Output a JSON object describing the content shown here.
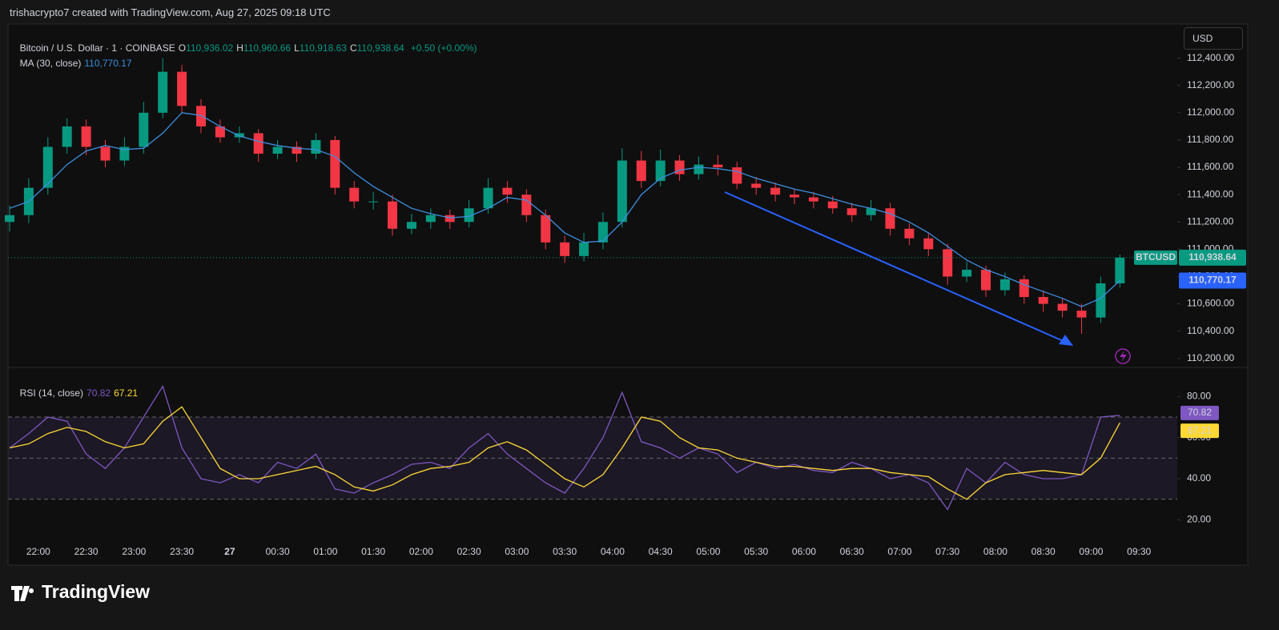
{
  "header": {
    "caption": "trishacrypto7 created with TradingView.com, Aug 27, 2025 09:18 UTC"
  },
  "toolbar": {
    "currency": "USD"
  },
  "footer": {
    "brand": "TradingView"
  },
  "chart_data": [
    {
      "type": "candlestick",
      "title": "Bitcoin / U.S. Dollar · 1 · COINBASE",
      "legend_ohlc": [
        {
          "key": "O",
          "value": "110,936.02"
        },
        {
          "key": "H",
          "value": "110,960.66"
        },
        {
          "key": "L",
          "value": "110,918.63"
        },
        {
          "key": "C",
          "value": "110,938.64"
        }
      ],
      "change": "+0.50 (+0.00%)",
      "up_color": "#089981",
      "down_color": "#f23645",
      "x": [
        "21:42",
        "21:54",
        "22:06",
        "22:18",
        "22:30",
        "22:42",
        "22:54",
        "23:06",
        "23:18",
        "23:30",
        "23:42",
        "23:54",
        "00:06",
        "00:18",
        "00:30",
        "00:42",
        "00:54",
        "01:06",
        "01:18",
        "01:30",
        "01:42",
        "01:54",
        "02:06",
        "02:18",
        "02:30",
        "02:42",
        "02:54",
        "03:06",
        "03:18",
        "03:30",
        "03:42",
        "03:54",
        "04:06",
        "04:18",
        "04:30",
        "04:42",
        "04:54",
        "05:06",
        "05:18",
        "05:30",
        "05:42",
        "05:54",
        "06:06",
        "06:18",
        "06:30",
        "06:42",
        "06:54",
        "07:06",
        "07:18",
        "07:30",
        "07:42",
        "07:54",
        "08:06",
        "08:18",
        "08:30",
        "08:42",
        "08:54",
        "09:06",
        "09:18"
      ],
      "open": [
        111200,
        111250,
        111450,
        111750,
        111900,
        111750,
        111650,
        111750,
        112000,
        112300,
        112050,
        111900,
        111820,
        111850,
        111700,
        111750,
        111700,
        111800,
        111450,
        111350,
        111350,
        111150,
        111200,
        111250,
        111200,
        111300,
        111450,
        111400,
        111250,
        111050,
        110950,
        111050,
        111200,
        111650,
        111500,
        111650,
        111550,
        111620,
        111600,
        111480,
        111450,
        111400,
        111380,
        111350,
        111300,
        111250,
        111300,
        111150,
        111080,
        111000,
        110800,
        110850,
        110700,
        110780,
        110650,
        110600,
        110550,
        110500,
        110750
      ],
      "high": [
        111320,
        111520,
        111820,
        111960,
        111950,
        111800,
        111820,
        112080,
        112400,
        112350,
        112100,
        111950,
        111900,
        111880,
        111800,
        111790,
        111850,
        111830,
        111500,
        111420,
        111400,
        111260,
        111300,
        111290,
        111360,
        111520,
        111500,
        111440,
        111290,
        111100,
        111120,
        111270,
        111740,
        111720,
        111730,
        111690,
        111680,
        111690,
        111640,
        111530,
        111490,
        111440,
        111420,
        111390,
        111340,
        111360,
        111340,
        111190,
        111120,
        111040,
        110910,
        110880,
        110830,
        110810,
        110700,
        110640,
        110600,
        110800,
        110960
      ],
      "low": [
        111130,
        111190,
        111400,
        111700,
        111690,
        111600,
        111610,
        111700,
        111960,
        112000,
        111850,
        111780,
        111780,
        111640,
        111660,
        111640,
        111660,
        111400,
        111300,
        111290,
        111100,
        111110,
        111150,
        111150,
        111160,
        111260,
        111340,
        111200,
        111000,
        110900,
        110910,
        111000,
        111160,
        111450,
        111460,
        111500,
        111510,
        111540,
        111440,
        111400,
        111350,
        111330,
        111300,
        111260,
        111200,
        111210,
        111100,
        111030,
        110950,
        110740,
        110760,
        110650,
        110660,
        110600,
        110540,
        110500,
        110380,
        110460,
        110720
      ],
      "close": [
        111250,
        111450,
        111750,
        111900,
        111750,
        111650,
        111750,
        112000,
        112300,
        112050,
        111900,
        111820,
        111850,
        111700,
        111750,
        111700,
        111800,
        111450,
        111350,
        111350,
        111150,
        111200,
        111250,
        111200,
        111300,
        111450,
        111400,
        111250,
        111050,
        110950,
        111050,
        111200,
        111650,
        111500,
        111650,
        111550,
        111620,
        111600,
        111480,
        111450,
        111400,
        111380,
        111350,
        111300,
        111250,
        111300,
        111150,
        111080,
        111000,
        110800,
        110850,
        110700,
        110780,
        110650,
        110600,
        110550,
        110500,
        110750,
        110938.64
      ],
      "series": [
        {
          "name": "MA (30, close)",
          "color": "#3d8fe0",
          "tag_color": "#2962ff",
          "last_value_label": "110,770.17",
          "values": [
            111300,
            111350,
            111480,
            111620,
            111720,
            111760,
            111730,
            111740,
            111850,
            112000,
            111980,
            111900,
            111830,
            111790,
            111760,
            111740,
            111730,
            111680,
            111560,
            111460,
            111380,
            111300,
            111260,
            111230,
            111240,
            111300,
            111380,
            111360,
            111250,
            111120,
            111050,
            111060,
            111200,
            111400,
            111520,
            111580,
            111600,
            111590,
            111570,
            111520,
            111480,
            111440,
            111410,
            111370,
            111330,
            111300,
            111260,
            111200,
            111120,
            111020,
            110920,
            110850,
            110800,
            110740,
            110690,
            110640,
            110580,
            110640,
            110770.17
          ]
        }
      ],
      "last_price": {
        "symbol": "BTCUSD",
        "value": 110938.64,
        "label": "110,938.64"
      },
      "xlim": [
        "21:41",
        "09:54"
      ],
      "xticks": [
        "22:00",
        "22:30",
        "23:00",
        "23:30",
        {
          "value": "00:00",
          "label": "27"
        },
        "00:30",
        "01:00",
        "01:30",
        "02:00",
        "02:30",
        "03:00",
        "03:30",
        "04:00",
        "04:30",
        "05:00",
        "05:30",
        "06:00",
        "06:30",
        "07:00",
        "07:30",
        "08:00",
        "08:30",
        "09:00",
        "09:30"
      ],
      "ylim": [
        110140,
        112650
      ],
      "yticks": [
        {
          "value": 110200,
          "label": "110,200.00"
        },
        {
          "value": 110400,
          "label": "110,400.00"
        },
        {
          "value": 110600,
          "label": "110,600.00"
        },
        {
          "value": 110800,
          "label": "110,800.00"
        },
        {
          "value": 111000,
          "label": "111,000.00"
        },
        {
          "value": 111200,
          "label": "111,200.00"
        },
        {
          "value": 111400,
          "label": "111,400.00"
        },
        {
          "value": 111600,
          "label": "111,600.00"
        },
        {
          "value": 111800,
          "label": "111,800.00"
        },
        {
          "value": 112000,
          "label": "112,000.00"
        },
        {
          "value": 112200,
          "label": "112,200.00"
        },
        {
          "value": 112400,
          "label": "112,400.00"
        }
      ]
    },
    {
      "type": "line",
      "title": "RSI (14, close)",
      "series": [
        {
          "color": "#7e57c2",
          "values": [
            55,
            62,
            70,
            68,
            52,
            45,
            55,
            70,
            85,
            55,
            40,
            38,
            42,
            38,
            48,
            45,
            52,
            35,
            33,
            38,
            42,
            47,
            48,
            45,
            55,
            62,
            52,
            45,
            38,
            33,
            45,
            60,
            82,
            58,
            55,
            50,
            55,
            52,
            43,
            48,
            45,
            47,
            44,
            43,
            48,
            45,
            40,
            42,
            38,
            25,
            45,
            38,
            48,
            42,
            40,
            40,
            42,
            70,
            70.82
          ]
        },
        {
          "color": "#fdd835",
          "values": [
            55,
            57,
            62,
            65,
            63,
            58,
            55,
            57,
            68,
            75,
            60,
            45,
            40,
            40,
            42,
            44,
            46,
            42,
            36,
            34,
            37,
            42,
            45,
            46,
            48,
            55,
            58,
            54,
            47,
            40,
            36,
            42,
            55,
            70,
            68,
            60,
            55,
            54,
            50,
            48,
            46,
            46,
            45,
            44,
            45,
            45,
            43,
            42,
            41,
            35,
            30,
            38,
            42,
            43,
            44,
            43,
            42,
            50,
            67.21
          ]
        }
      ],
      "levels": [
        30,
        50,
        70
      ],
      "ylim": [
        10,
        93
      ],
      "yticks": [
        {
          "value": 20,
          "label": "20.00"
        },
        {
          "value": 40,
          "label": "40.00"
        },
        {
          "value": 60,
          "label": "60.00"
        },
        {
          "value": 80,
          "label": "80.00"
        }
      ]
    }
  ]
}
